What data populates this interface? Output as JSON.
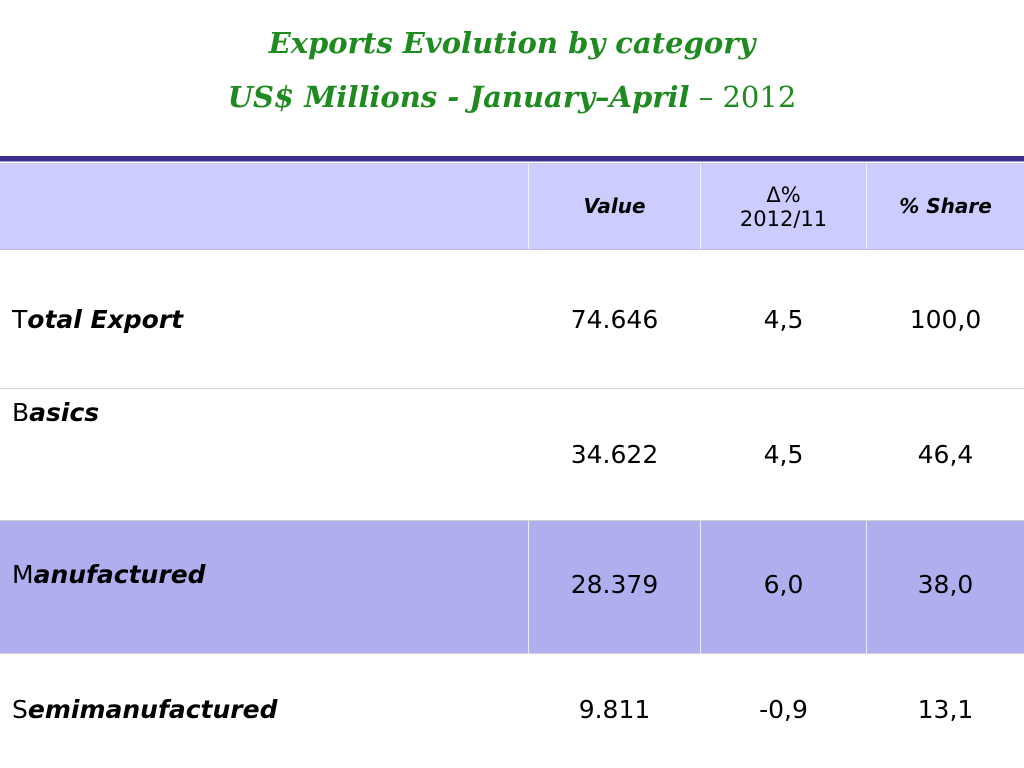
{
  "title": {
    "line1": "Exports Evolution by category",
    "line2_main": "US$ Millions - January–April",
    "line2_sep": " – ",
    "line2_year": "2012"
  },
  "table": {
    "headers": {
      "value": "Value",
      "change_symbol": "Δ%",
      "change_period": "2012/11",
      "share": "% Share"
    },
    "rows": [
      {
        "label_first": "T",
        "label_rest": "otal Export",
        "value": "74.646",
        "change": "4,5",
        "share": "100,0"
      },
      {
        "label_first": "B",
        "label_rest": "asics",
        "value": "34.622",
        "change": "4,5",
        "share": "46,4"
      },
      {
        "label_first": "M",
        "label_rest": "anufactured",
        "value": "28.379",
        "change": "6,0",
        "share": "38,0"
      },
      {
        "label_first": "S",
        "label_rest": "emimanufactured",
        "value": "9.811",
        "change": "-0,9",
        "share": "13,1"
      }
    ]
  },
  "colors": {
    "title": "#1f8a1f",
    "header_bg": "#ccccff",
    "highlight_row_bg": "#afafef",
    "top_rule": "#3a2f8f"
  }
}
